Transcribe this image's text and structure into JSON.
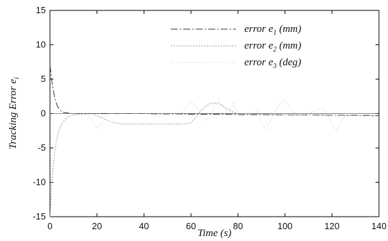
{
  "chart_data": {
    "type": "line",
    "xlabel": "Time (s)",
    "ylabel_main": "Tracking Error e",
    "ylabel_sub": "i",
    "xlim": [
      0,
      140
    ],
    "ylim": [
      -15,
      15
    ],
    "xticks": [
      "0",
      "20",
      "40",
      "60",
      "80",
      "100",
      "120",
      "140"
    ],
    "yticks": [
      "15",
      "10",
      "5",
      "0",
      "-5",
      "-10",
      "-15"
    ],
    "legend_position": "top-right",
    "series": [
      {
        "legend_prefix": "error e",
        "legend_sub": "1",
        "legend_suffix": " (mm)",
        "color": "#333333",
        "dash": "10 3 2 3",
        "x": [
          0,
          1,
          2,
          3,
          4,
          5,
          6,
          8,
          10,
          14,
          18,
          22,
          26,
          30,
          35,
          40,
          45,
          50,
          55,
          60,
          65,
          70,
          75,
          80,
          90,
          100,
          110,
          120,
          130,
          140
        ],
        "y": [
          7,
          4.2,
          2.3,
          1.2,
          0.6,
          0.3,
          0.15,
          0.05,
          0,
          0,
          0,
          0,
          0,
          0,
          0,
          0,
          -0.05,
          -0.05,
          -0.05,
          -0.1,
          -0.1,
          -0.1,
          -0.1,
          -0.15,
          -0.15,
          -0.2,
          -0.2,
          -0.25,
          -0.25,
          -0.3
        ]
      },
      {
        "legend_prefix": "error e",
        "legend_sub": "2",
        "legend_suffix": " (mm)",
        "color": "#999999",
        "dash": "2 2",
        "x": [
          0,
          0.5,
          1,
          2,
          3,
          4,
          6,
          8,
          10,
          14,
          18,
          22,
          26,
          30,
          40,
          50,
          55,
          58,
          60,
          62,
          64,
          66,
          68,
          70,
          72,
          74,
          76,
          78,
          80,
          90,
          100,
          110,
          120,
          130,
          140
        ],
        "y": [
          -15,
          -12,
          -9,
          -5.5,
          -3.5,
          -2.2,
          -1,
          -0.4,
          -0.2,
          -0.1,
          0,
          -0.6,
          -1.2,
          -1.5,
          -1.5,
          -1.5,
          -1.5,
          -1.5,
          -1.3,
          -0.6,
          0.3,
          1,
          1.4,
          1.6,
          1.4,
          1,
          0.6,
          0.2,
          0,
          -0.1,
          -0.2,
          -0.2,
          -0.25,
          -0.3,
          -0.35
        ]
      },
      {
        "legend_prefix": "error e",
        "legend_sub": "3",
        "legend_suffix": " (deg)",
        "color": "#bbbbbb",
        "dash": "1 3",
        "x": [
          0,
          10,
          15,
          18,
          20,
          22,
          24,
          26,
          30,
          40,
          50,
          56,
          58,
          60,
          62,
          64,
          66,
          68,
          70,
          72,
          74,
          76,
          78,
          80,
          86,
          88,
          90,
          92,
          94,
          96,
          98,
          100,
          102,
          104,
          106,
          110,
          116,
          118,
          120,
          122,
          124,
          126,
          130,
          140
        ],
        "y": [
          0,
          0,
          0,
          -1,
          -2.2,
          -1.5,
          -0.3,
          0,
          0,
          0,
          0,
          0,
          1,
          1.8,
          1,
          0,
          -1,
          -0.5,
          1,
          2,
          1,
          0,
          1.5,
          0,
          0,
          0.5,
          -1.5,
          -2.2,
          -1,
          0.5,
          1.5,
          2,
          1,
          0,
          -0.3,
          0,
          0.8,
          0,
          -1.5,
          -2.5,
          -1.2,
          0,
          0,
          0
        ]
      }
    ]
  }
}
